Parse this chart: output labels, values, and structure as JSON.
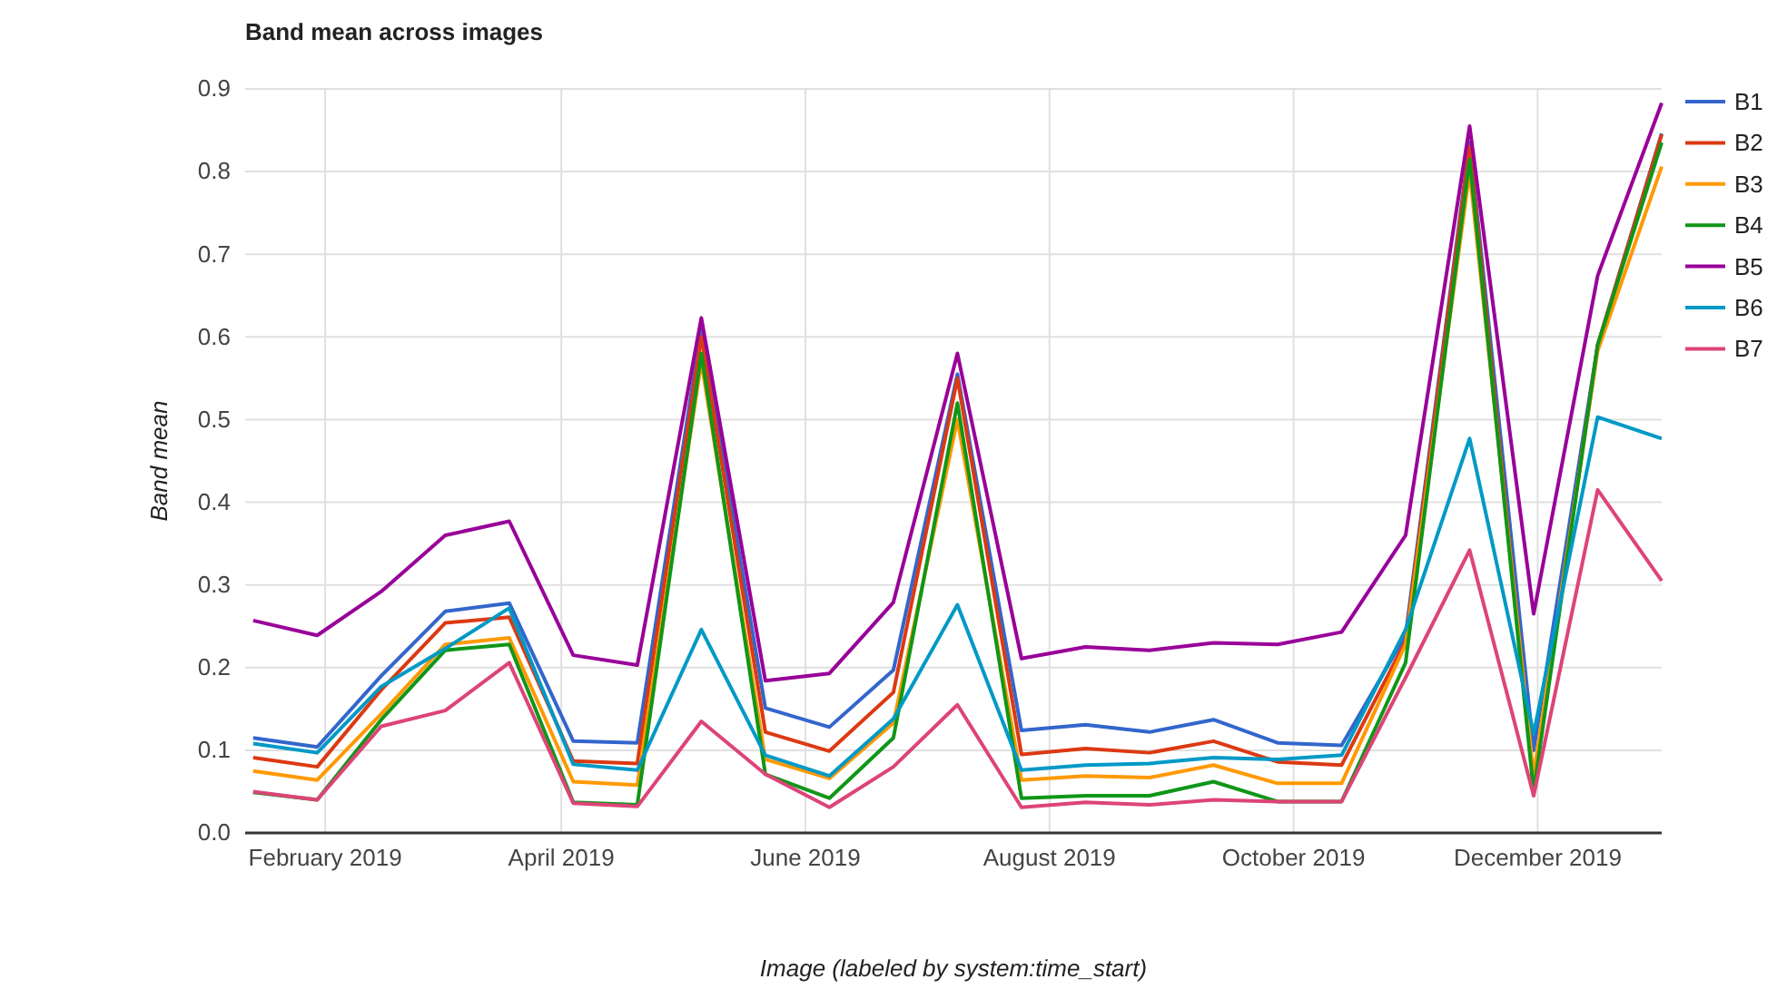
{
  "chart_data": {
    "type": "line",
    "title": "Band mean across images",
    "xlabel": "Image (labeled by system:time_start)",
    "ylabel": "Band mean",
    "x": [
      "2019-01-14",
      "2019-01-30",
      "2019-02-15",
      "2019-03-03",
      "2019-03-19",
      "2019-04-04",
      "2019-04-20",
      "2019-05-06",
      "2019-05-22",
      "2019-06-07",
      "2019-06-23",
      "2019-07-09",
      "2019-07-25",
      "2019-08-10",
      "2019-08-26",
      "2019-09-11",
      "2019-09-27",
      "2019-10-13",
      "2019-10-29",
      "2019-11-14",
      "2019-11-30",
      "2019-12-16",
      "2020-01-01"
    ],
    "series": [
      {
        "name": "B1",
        "color": "#3366cc",
        "values": [
          0.115,
          0.104,
          0.19,
          0.268,
          0.278,
          0.111,
          0.109,
          0.61,
          0.151,
          0.128,
          0.197,
          0.555,
          0.124,
          0.131,
          0.122,
          0.137,
          0.109,
          0.106,
          0.239,
          0.835,
          0.1,
          0.59,
          0.846
        ]
      },
      {
        "name": "B2",
        "color": "#dc3912",
        "values": [
          0.091,
          0.08,
          0.173,
          0.254,
          0.261,
          0.087,
          0.084,
          0.6,
          0.122,
          0.099,
          0.17,
          0.55,
          0.095,
          0.102,
          0.097,
          0.111,
          0.086,
          0.082,
          0.232,
          0.83,
          0.06,
          0.59,
          0.845
        ]
      },
      {
        "name": "B3",
        "color": "#ff9900",
        "values": [
          0.075,
          0.064,
          0.144,
          0.228,
          0.236,
          0.062,
          0.058,
          0.57,
          0.089,
          0.066,
          0.133,
          0.5,
          0.064,
          0.069,
          0.067,
          0.082,
          0.06,
          0.06,
          0.228,
          0.8,
          0.07,
          0.583,
          0.806
        ]
      },
      {
        "name": "B4",
        "color": "#109618",
        "values": [
          0.049,
          0.04,
          0.137,
          0.221,
          0.228,
          0.037,
          0.034,
          0.58,
          0.071,
          0.042,
          0.115,
          0.52,
          0.042,
          0.045,
          0.045,
          0.062,
          0.038,
          0.038,
          0.206,
          0.815,
          0.05,
          0.59,
          0.835
        ]
      },
      {
        "name": "B5",
        "color": "#990099",
        "values": [
          0.257,
          0.239,
          0.292,
          0.36,
          0.377,
          0.215,
          0.203,
          0.623,
          0.184,
          0.193,
          0.279,
          0.58,
          0.211,
          0.225,
          0.221,
          0.23,
          0.228,
          0.243,
          0.36,
          0.855,
          0.265,
          0.674,
          0.883
        ]
      },
      {
        "name": "B6",
        "color": "#0099c6",
        "values": [
          0.108,
          0.097,
          0.177,
          0.223,
          0.272,
          0.083,
          0.076,
          0.246,
          0.094,
          0.069,
          0.138,
          0.276,
          0.076,
          0.082,
          0.084,
          0.091,
          0.089,
          0.094,
          0.246,
          0.477,
          0.12,
          0.503,
          0.477
        ]
      },
      {
        "name": "B7",
        "color": "#dd4477",
        "values": [
          0.05,
          0.04,
          0.129,
          0.148,
          0.206,
          0.036,
          0.032,
          0.135,
          0.071,
          0.031,
          0.08,
          0.155,
          0.031,
          0.037,
          0.034,
          0.04,
          0.038,
          0.038,
          0.188,
          0.342,
          0.045,
          0.415,
          0.305
        ]
      }
    ],
    "xlim": [
      "2019-01-12",
      "2020-01-01"
    ],
    "xticks": [
      {
        "value": "2019-02-01",
        "label": "February 2019"
      },
      {
        "value": "2019-04-01",
        "label": "April 2019"
      },
      {
        "value": "2019-06-01",
        "label": "June 2019"
      },
      {
        "value": "2019-08-01",
        "label": "August 2019"
      },
      {
        "value": "2019-10-01",
        "label": "October 2019"
      },
      {
        "value": "2019-12-01",
        "label": "December 2019"
      }
    ],
    "ylim": [
      0,
      0.9
    ],
    "yticks": [
      {
        "value": 0,
        "label": "0.0"
      },
      0.1,
      0.2,
      0.3,
      0.4,
      0.5,
      0.6,
      0.7,
      0.8,
      0.9
    ],
    "grid": true,
    "legend": "right",
    "marker": "none",
    "line_style": "solid"
  }
}
